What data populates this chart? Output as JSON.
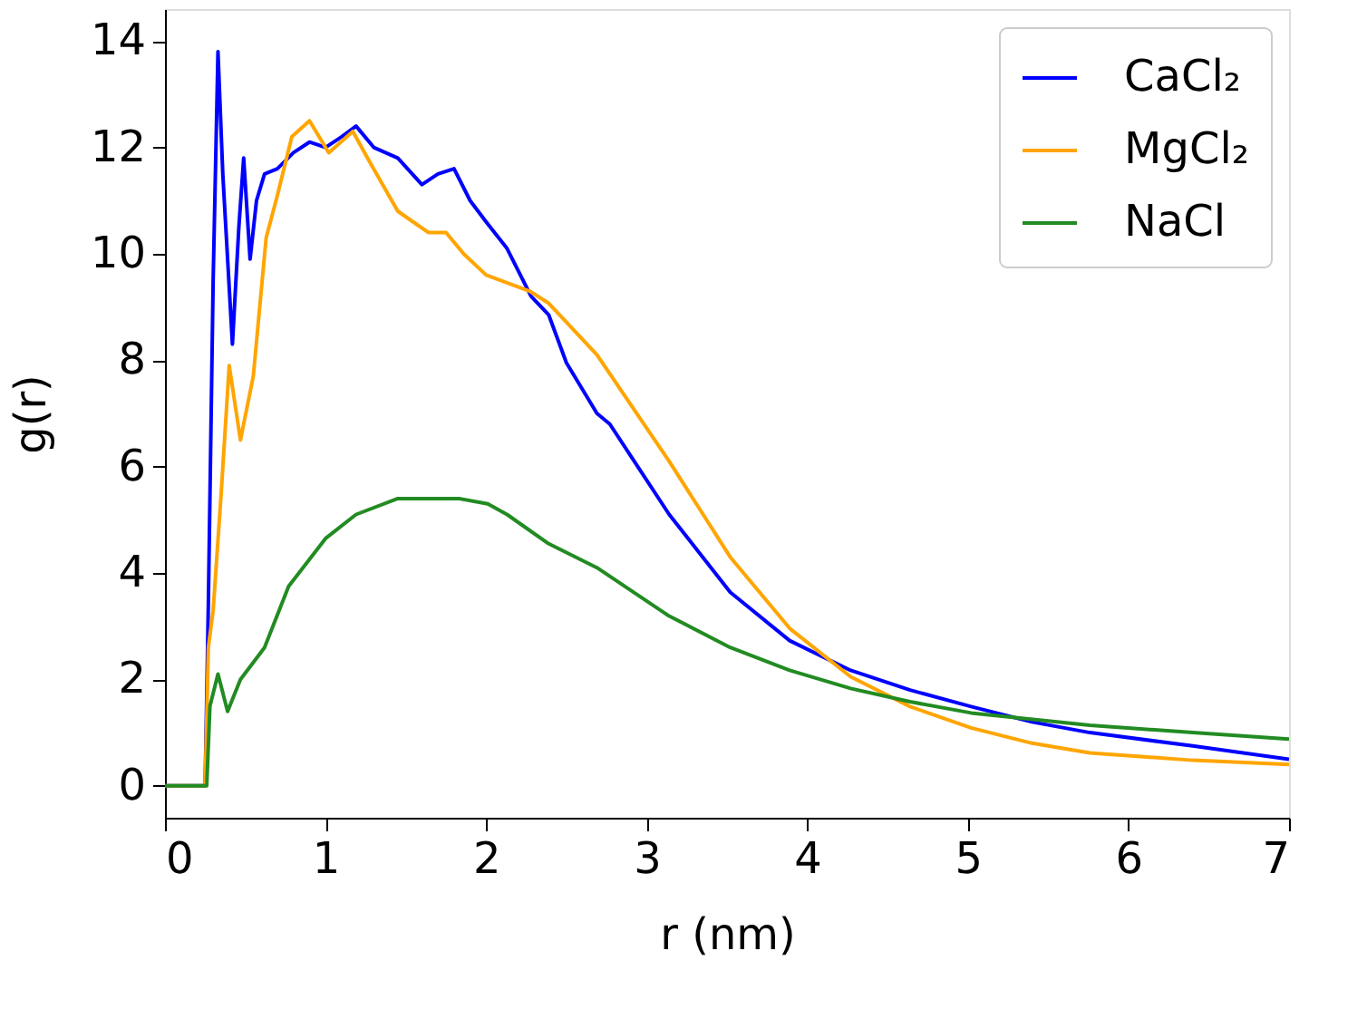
{
  "chart_data": {
    "type": "line",
    "xlabel": "r (nm)",
    "ylabel": "g(r)",
    "xlim": [
      0,
      7
    ],
    "ylim": [
      -0.6,
      14.6
    ],
    "xticks": [
      0,
      1,
      2,
      3,
      4,
      5,
      6,
      7
    ],
    "yticks": [
      0,
      2,
      4,
      6,
      8,
      10,
      12,
      14
    ],
    "grid": false,
    "legend": "top right",
    "marker": "none",
    "line_style": "solid",
    "series": [
      {
        "name": "CaCl₂",
        "color": "#0000ff",
        "x": [
          0,
          0.25,
          0.27,
          0.3,
          0.33,
          0.36,
          0.42,
          0.46,
          0.49,
          0.53,
          0.57,
          0.62,
          0.7,
          0.8,
          0.9,
          1.0,
          1.1,
          1.19,
          1.3,
          1.45,
          1.6,
          1.7,
          1.8,
          1.9,
          2.0,
          2.13,
          2.28,
          2.39,
          2.5,
          2.69,
          2.77,
          3.14,
          3.52,
          3.89,
          4.27,
          4.64,
          5.02,
          5.4,
          5.76,
          6.4,
          7.0
        ],
        "values": [
          0,
          0,
          3.4,
          9.5,
          13.8,
          11.5,
          8.3,
          10.5,
          11.8,
          9.9,
          11.0,
          11.5,
          11.6,
          11.9,
          12.1,
          12.0,
          12.2,
          12.4,
          12.0,
          11.8,
          11.3,
          11.5,
          11.6,
          11.0,
          10.6,
          10.1,
          9.2,
          8.85,
          7.95,
          7.0,
          6.8,
          5.1,
          3.64,
          2.73,
          2.17,
          1.8,
          1.49,
          1.2,
          1.0,
          0.75,
          0.5
        ]
      },
      {
        "name": "MgCl₂",
        "color": "#ffa500",
        "x": [
          0,
          0.25,
          0.27,
          0.3,
          0.35,
          0.4,
          0.47,
          0.55,
          0.63,
          0.7,
          0.79,
          0.9,
          1.02,
          1.17,
          1.28,
          1.45,
          1.64,
          1.75,
          1.86,
          2.0,
          2.27,
          2.39,
          2.69,
          3.14,
          3.52,
          3.89,
          4.27,
          4.64,
          5.02,
          5.4,
          5.76,
          6.4,
          7.0
        ],
        "values": [
          0,
          0,
          2.6,
          3.3,
          5.5,
          7.9,
          6.5,
          7.7,
          10.3,
          11.1,
          12.2,
          12.5,
          11.9,
          12.3,
          11.7,
          10.8,
          10.4,
          10.4,
          10.0,
          9.6,
          9.3,
          9.07,
          8.1,
          6.1,
          4.3,
          2.96,
          2.05,
          1.49,
          1.09,
          0.8,
          0.62,
          0.48,
          0.4
        ]
      },
      {
        "name": "NaCl",
        "color": "#228b22",
        "x": [
          0,
          0.26,
          0.28,
          0.33,
          0.39,
          0.47,
          0.62,
          0.77,
          1.0,
          1.19,
          1.45,
          1.65,
          1.83,
          2.01,
          2.13,
          2.39,
          2.69,
          3.14,
          3.52,
          3.89,
          4.27,
          4.64,
          5.02,
          5.76,
          6.4,
          7.0
        ],
        "values": [
          0,
          0,
          1.5,
          2.1,
          1.4,
          2.0,
          2.6,
          3.75,
          4.65,
          5.1,
          5.4,
          5.4,
          5.4,
          5.3,
          5.1,
          4.55,
          4.1,
          3.19,
          2.6,
          2.17,
          1.83,
          1.58,
          1.37,
          1.14,
          1.0,
          0.88
        ]
      }
    ]
  }
}
